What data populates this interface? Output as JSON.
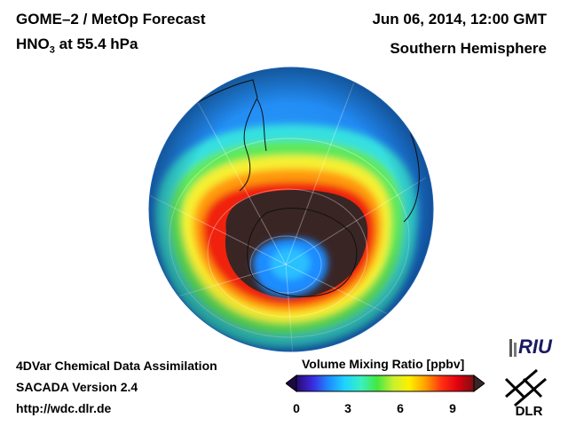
{
  "header": {
    "title": "GOME–2 / MetOp Forecast",
    "species_main": "HNO",
    "species_sub": "3",
    "species_rest": " at 55.4 hPa",
    "datetime": "Jun 06, 2014, 12:00 GMT",
    "region": "Southern Hemisphere"
  },
  "footer": {
    "line1": "4DVar Chemical Data Assimilation",
    "line2": "SACADA Version 2.4",
    "line3": "http://wdc.dlr.de"
  },
  "colorbar": {
    "title": "Volume Mixing Ratio [ppbv]",
    "ticks": [
      "0",
      "3",
      "6",
      "9"
    ],
    "colors": [
      "#2a0a70",
      "#3a2adf",
      "#1e8cff",
      "#1ed4ff",
      "#39f0c0",
      "#44e840",
      "#c8f030",
      "#fff000",
      "#ffa000",
      "#ff3010",
      "#e00010",
      "#7a1010"
    ]
  },
  "logos": {
    "riu": "RIU",
    "dlr": "DLR"
  },
  "map": {
    "projection": "orthographic",
    "background_value_color": "#1e8cff",
    "vortex_color": "#3a2525"
  }
}
